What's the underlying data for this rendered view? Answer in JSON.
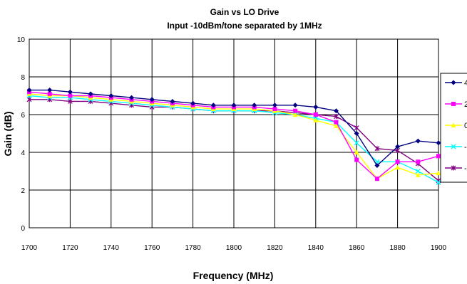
{
  "chart_data": {
    "type": "line",
    "title": "Gain vs LO Drive",
    "subtitle": "Input -10dBm/tone separated by 1MHz",
    "xlabel": "Frequency (MHz)",
    "ylabel": "Gain (dB)",
    "xlim": [
      1700,
      1900
    ],
    "ylim": [
      0,
      10
    ],
    "x_ticks": [
      1700,
      1720,
      1740,
      1760,
      1780,
      1800,
      1820,
      1840,
      1860,
      1880,
      1900
    ],
    "y_ticks": [
      0,
      2,
      4,
      6,
      8,
      10
    ],
    "grid": true,
    "legend_position": "right",
    "x": [
      1700,
      1710,
      1720,
      1730,
      1740,
      1750,
      1760,
      1770,
      1780,
      1790,
      1800,
      1810,
      1820,
      1830,
      1840,
      1850,
      1860,
      1870,
      1880,
      1890,
      1900
    ],
    "series": [
      {
        "name": "4",
        "color": "#000080",
        "marker": "diamond",
        "values": [
          7.3,
          7.3,
          7.2,
          7.1,
          7.0,
          6.9,
          6.8,
          6.7,
          6.6,
          6.5,
          6.5,
          6.5,
          6.5,
          6.5,
          6.4,
          6.2,
          5.0,
          3.3,
          4.3,
          4.6,
          4.5
        ]
      },
      {
        "name": "2",
        "color": "#FF00FF",
        "marker": "square",
        "values": [
          7.2,
          7.1,
          7.0,
          7.0,
          6.9,
          6.8,
          6.7,
          6.6,
          6.5,
          6.4,
          6.4,
          6.4,
          6.3,
          6.2,
          6.0,
          5.6,
          3.6,
          2.6,
          3.5,
          3.5,
          3.8
        ]
      },
      {
        "name": "0",
        "color": "#FFFF00",
        "marker": "triangle",
        "values": [
          7.1,
          7.0,
          7.0,
          6.9,
          6.8,
          6.7,
          6.6,
          6.5,
          6.4,
          6.3,
          6.3,
          6.3,
          6.2,
          6.0,
          5.7,
          5.4,
          4.0,
          2.6,
          3.2,
          2.8,
          2.9
        ]
      },
      {
        "name": "-",
        "color": "#00FFFF",
        "marker": "x",
        "values": [
          7.0,
          6.9,
          6.9,
          6.8,
          6.7,
          6.6,
          6.5,
          6.4,
          6.3,
          6.2,
          6.2,
          6.2,
          6.1,
          6.0,
          5.8,
          5.6,
          4.5,
          3.5,
          3.5,
          3.0,
          2.4
        ]
      },
      {
        "name": "-",
        "color": "#800080",
        "marker": "star",
        "values": [
          6.8,
          6.8,
          6.7,
          6.7,
          6.6,
          6.5,
          6.4,
          6.4,
          6.3,
          6.2,
          6.2,
          6.2,
          6.2,
          6.1,
          6.0,
          5.9,
          5.3,
          4.2,
          4.1,
          3.4,
          2.5
        ]
      }
    ]
  }
}
